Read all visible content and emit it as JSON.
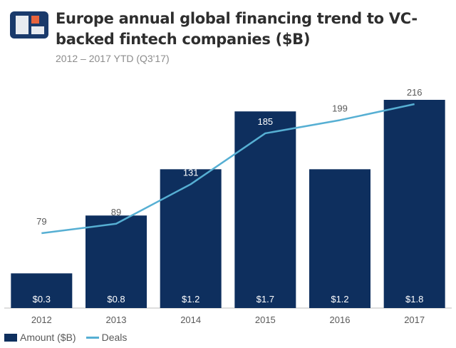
{
  "header": {
    "title": "Europe annual global financing trend to VC-backed fintech companies ($B)",
    "subtitle": "2012 – 2017 YTD (Q3'17)"
  },
  "colors": {
    "bar": "#0e2f5e",
    "line": "#56afd3",
    "logo_dark": "#1a3a6b",
    "logo_accent": "#e8643c"
  },
  "chart_data": {
    "type": "bar",
    "categories": [
      "2012",
      "2013",
      "2014",
      "2015",
      "2016",
      "2017"
    ],
    "series": [
      {
        "name": "Amount ($B)",
        "type": "bar",
        "values": [
          0.3,
          0.8,
          1.2,
          1.7,
          1.2,
          1.8
        ],
        "labels": [
          "$0.3",
          "$0.8",
          "$1.2",
          "$1.7",
          "$1.2",
          "$1.8"
        ]
      },
      {
        "name": "Deals",
        "type": "line",
        "values": [
          79,
          89,
          131,
          185,
          199,
          216
        ],
        "labels": [
          "79",
          "89",
          "131",
          "185",
          "199",
          "216"
        ]
      }
    ],
    "legend_position": "bottom-left",
    "grid": false
  },
  "legend": {
    "bar_label": "Amount ($B)",
    "line_label": "Deals"
  }
}
